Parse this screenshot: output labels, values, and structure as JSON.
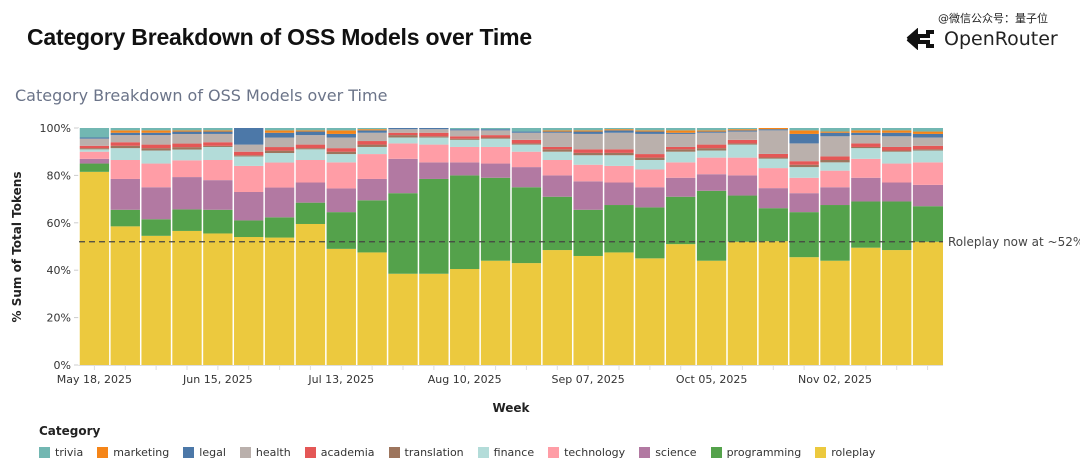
{
  "header": {
    "title": "Category Breakdown of OSS Models over Time",
    "watermark": "@微信公众号：量子位",
    "brand_name": "OpenRouter",
    "brand_icon": "openrouter-logo-icon"
  },
  "chart_data": {
    "type": "bar",
    "stacked": "normalized",
    "title": "Category Breakdown of OSS Models over Time",
    "xlabel": "Week",
    "ylabel": "% Sum of Total Tokens",
    "ylim": [
      0,
      100
    ],
    "y_ticks": [
      "0%",
      "20%",
      "40%",
      "60%",
      "80%",
      "100%"
    ],
    "y_tick_values": [
      0,
      20,
      40,
      60,
      80,
      100
    ],
    "x_tick_labels": [
      "May 18, 2025",
      "Jun 15, 2025",
      "Jul 13, 2025",
      "Aug 10, 2025",
      "Sep 07, 2025",
      "Oct 05, 2025",
      "Nov 02, 2025"
    ],
    "x_tick_indices": [
      0,
      4,
      8,
      12,
      16,
      20,
      24
    ],
    "grid": false,
    "legend_placement": "bottom",
    "legend_title": "Category",
    "categories": [
      "2025-05-18",
      "2025-05-25",
      "2025-06-01",
      "2025-06-08",
      "2025-06-15",
      "2025-06-22",
      "2025-06-29",
      "2025-07-06",
      "2025-07-13",
      "2025-07-20",
      "2025-07-27",
      "2025-08-03",
      "2025-08-10",
      "2025-08-17",
      "2025-08-24",
      "2025-08-31",
      "2025-09-07",
      "2025-09-14",
      "2025-09-21",
      "2025-09-28",
      "2025-10-05",
      "2025-10-12",
      "2025-10-19",
      "2025-10-26",
      "2025-11-02",
      "2025-11-09",
      "2025-11-16",
      "2025-11-23"
    ],
    "series": [
      {
        "name": "roleplay",
        "color": "#ECC93E",
        "values": [
          81.5,
          58.5,
          54.5,
          56,
          55.5,
          54,
          53.5,
          59.5,
          49,
          47.5,
          38.5,
          38.5,
          40.5,
          44,
          43,
          48.5,
          46,
          47.5,
          45,
          51,
          44,
          52,
          52.5,
          45.5,
          44,
          49.5,
          48.5,
          52
        ]
      },
      {
        "name": "programming",
        "color": "#54A24B",
        "values": [
          3.5,
          7,
          7,
          9,
          10,
          7,
          8.5,
          9,
          15.5,
          22,
          34,
          40,
          39.5,
          35,
          32,
          22.5,
          19.5,
          20,
          21.5,
          20,
          29.5,
          19.5,
          14,
          19,
          23.5,
          19.5,
          20.5,
          15
        ]
      },
      {
        "name": "science",
        "color": "#B279A2",
        "values": [
          2,
          13,
          13.5,
          13.5,
          12.5,
          12,
          12.5,
          8.5,
          10,
          9,
          14.5,
          7,
          5.5,
          6,
          8.5,
          9,
          12,
          9.5,
          8.5,
          8,
          7,
          8.5,
          8.5,
          8,
          7.5,
          10,
          8,
          9
        ]
      },
      {
        "name": "technology",
        "color": "#FF9DA6",
        "values": [
          3,
          8,
          10,
          7,
          8.5,
          11,
          10.5,
          9.5,
          11,
          10.5,
          6.5,
          7.5,
          6.5,
          7,
          6.5,
          6.5,
          7,
          7,
          7.5,
          6.5,
          7,
          7.5,
          8.5,
          6.5,
          7,
          8,
          8,
          9.5
        ]
      },
      {
        "name": "finance",
        "color": "#B3DCD9",
        "values": [
          1,
          5,
          5.5,
          4.5,
          5.5,
          4,
          4,
          4.5,
          3.5,
          3,
          2.5,
          3,
          3,
          3.5,
          3,
          3.5,
          4,
          4.5,
          4,
          4.5,
          3,
          5.5,
          4,
          4.5,
          3.5,
          4.5,
          5,
          5
        ]
      },
      {
        "name": "translation",
        "color": "#9D755D",
        "values": [
          0.5,
          1,
          1,
          1,
          0.5,
          0.5,
          1,
          0.5,
          1,
          1,
          1,
          0.5,
          0.5,
          0.5,
          0.5,
          1,
          1,
          1,
          1,
          1,
          1,
          0.5,
          0.5,
          1,
          1,
          0.5,
          0.5,
          0.5
        ]
      },
      {
        "name": "academia",
        "color": "#E45756",
        "values": [
          1,
          1.5,
          1.5,
          1.5,
          1.5,
          1.5,
          1.5,
          1.5,
          1.5,
          1.5,
          1,
          1.5,
          1,
          1,
          1.5,
          1,
          1.5,
          1.5,
          1.5,
          1,
          1.5,
          1.5,
          1.5,
          1.5,
          1.5,
          1.5,
          1.5,
          1.5
        ]
      },
      {
        "name": "health",
        "color": "#BAB0AC",
        "values": [
          3,
          3,
          4,
          4,
          3.5,
          3,
          4,
          4,
          4.5,
          3.5,
          1.5,
          1.5,
          2.5,
          2,
          3,
          6,
          6.5,
          7,
          8.5,
          5.5,
          5,
          3.5,
          10,
          7.5,
          8.5,
          3.5,
          4.5,
          3.5
        ]
      },
      {
        "name": "legal",
        "color": "#4C78A8",
        "values": [
          0.5,
          1,
          1,
          1,
          1,
          7,
          2,
          1.5,
          1.5,
          1,
          0.5,
          0.5,
          0.5,
          0.5,
          0.5,
          0.5,
          1,
          1,
          1,
          0.5,
          0.5,
          0.5,
          0.5,
          4,
          1.5,
          1,
          1.5,
          1.5
        ]
      },
      {
        "name": "marketing",
        "color": "#F58518",
        "values": [
          0,
          1,
          1,
          0.5,
          0.5,
          0,
          1,
          0.5,
          1.5,
          0.5,
          0,
          0,
          0,
          0,
          0,
          0.5,
          0.5,
          0.5,
          0.5,
          1,
          0.5,
          0.5,
          0.5,
          1.5,
          0.5,
          1,
          1,
          1
        ]
      },
      {
        "name": "trivia",
        "color": "#72B7B2",
        "values": [
          4,
          1,
          1,
          1,
          1,
          0,
          1,
          1,
          1,
          0.5,
          0,
          0,
          0.5,
          0.5,
          1.5,
          1,
          1,
          0.5,
          1,
          1,
          1,
          0.5,
          0,
          1,
          1.5,
          1,
          1,
          1.5
        ]
      }
    ],
    "reference_line": {
      "value": 52,
      "style": "dashed",
      "label": "Roleplay now at ~52%"
    },
    "legend_order": [
      "trivia",
      "marketing",
      "legal",
      "health",
      "academia",
      "translation",
      "finance",
      "technology",
      "science",
      "programming",
      "roleplay"
    ]
  }
}
